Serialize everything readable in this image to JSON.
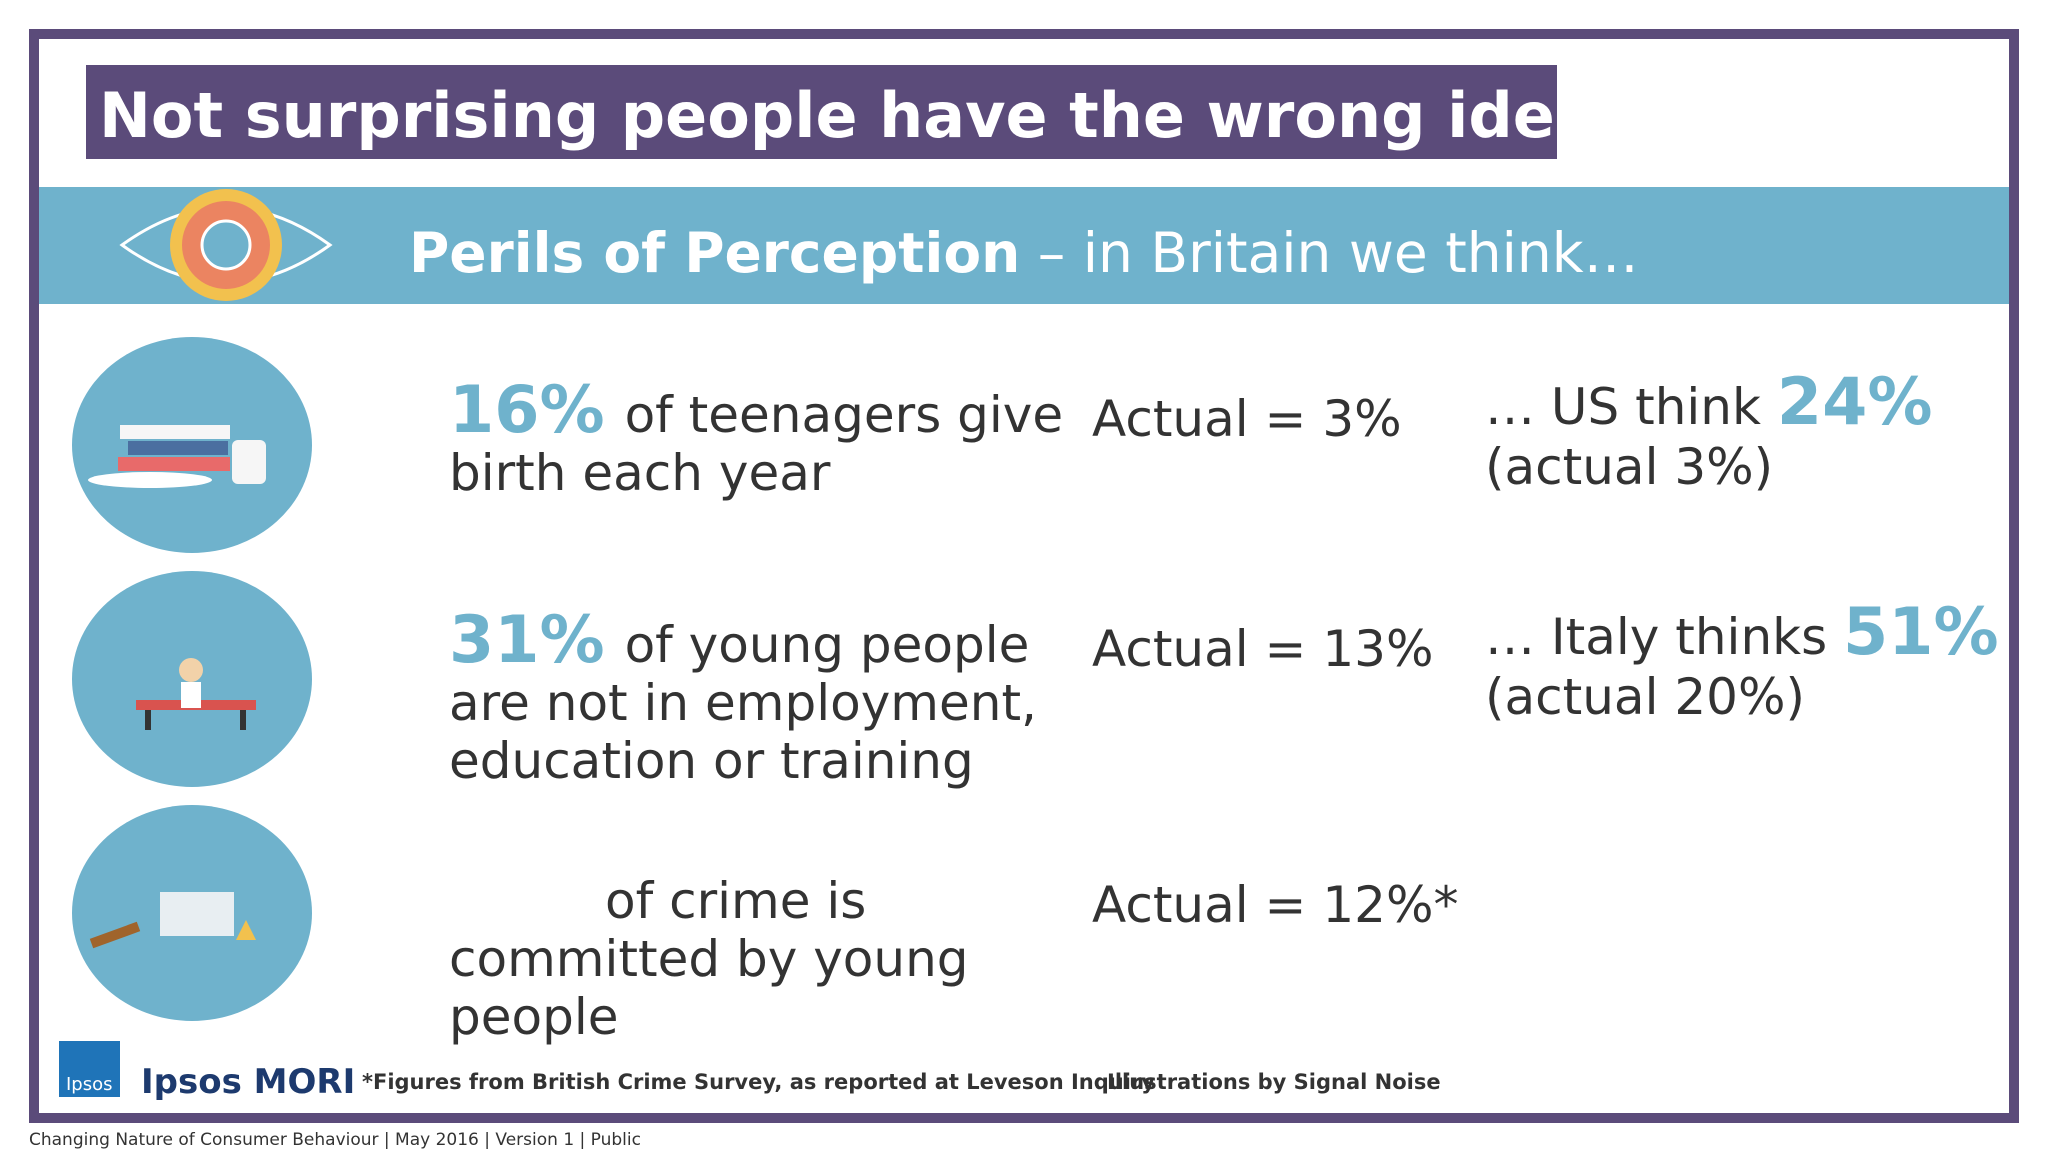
{
  "title": "Not surprising people have the wrong idea…",
  "banner": {
    "bold": "Perils of Perception",
    "rest": " – in Britain we think…"
  },
  "rows": [
    {
      "highlight": "16%",
      "lines": [
        "of teenagers give",
        "birth each year"
      ],
      "actual": "Actual = 3%",
      "comparison": {
        "prefix": "… US think ",
        "value": "24%",
        "note": "(actual 3%)"
      }
    },
    {
      "highlight": "31%",
      "lines": [
        "of young people",
        "are not in employment,",
        "education or training"
      ],
      "actual": "Actual = 13%",
      "comparison": {
        "prefix": "… Italy thinks ",
        "value": "51%",
        "note": "(actual 20%)"
      }
    },
    {
      "lines": [
        "of crime is",
        "committed by young",
        "people"
      ],
      "actual": "Actual = 12%*"
    }
  ],
  "footer": {
    "logo": "Ipsos",
    "brand": "Ipsos MORI",
    "footnote": "*Figures from British Crime Survey, as reported at Leveson Inquiry",
    "credit": "Illustrations by Signal Noise"
  },
  "bottom_line": "Changing Nature of Consumer Behaviour |  May 2016 |  Version 1  |  Public"
}
